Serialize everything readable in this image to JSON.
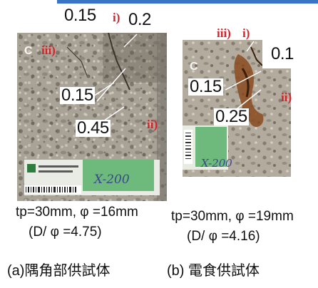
{
  "left_specimen": {
    "crack_labels": [
      "0.15",
      "0.2",
      "0.15",
      "0.45"
    ],
    "markers": [
      "i)",
      "iii)",
      "ii)"
    ],
    "photo_mark": "C",
    "tag_text": "X-200",
    "params": "tp=30mm, φ =16mm",
    "ratio": "(D/ φ =4.75)",
    "caption": "(a)隅角部供試体"
  },
  "right_specimen": {
    "crack_labels": [
      "0.1",
      "0.15",
      "0.25"
    ],
    "markers": [
      "iii)",
      "i)",
      "ii)"
    ],
    "photo_mark": "C",
    "tag_text": "X-200",
    "params": "tp=30mm, φ =19mm",
    "ratio": "(D/ φ =4.16)",
    "caption": "(b) 電食供試体"
  },
  "colors": {
    "accent_bar": "#3b73c6",
    "marker_red": "#d3242b",
    "tag_green": "#58b06a"
  }
}
